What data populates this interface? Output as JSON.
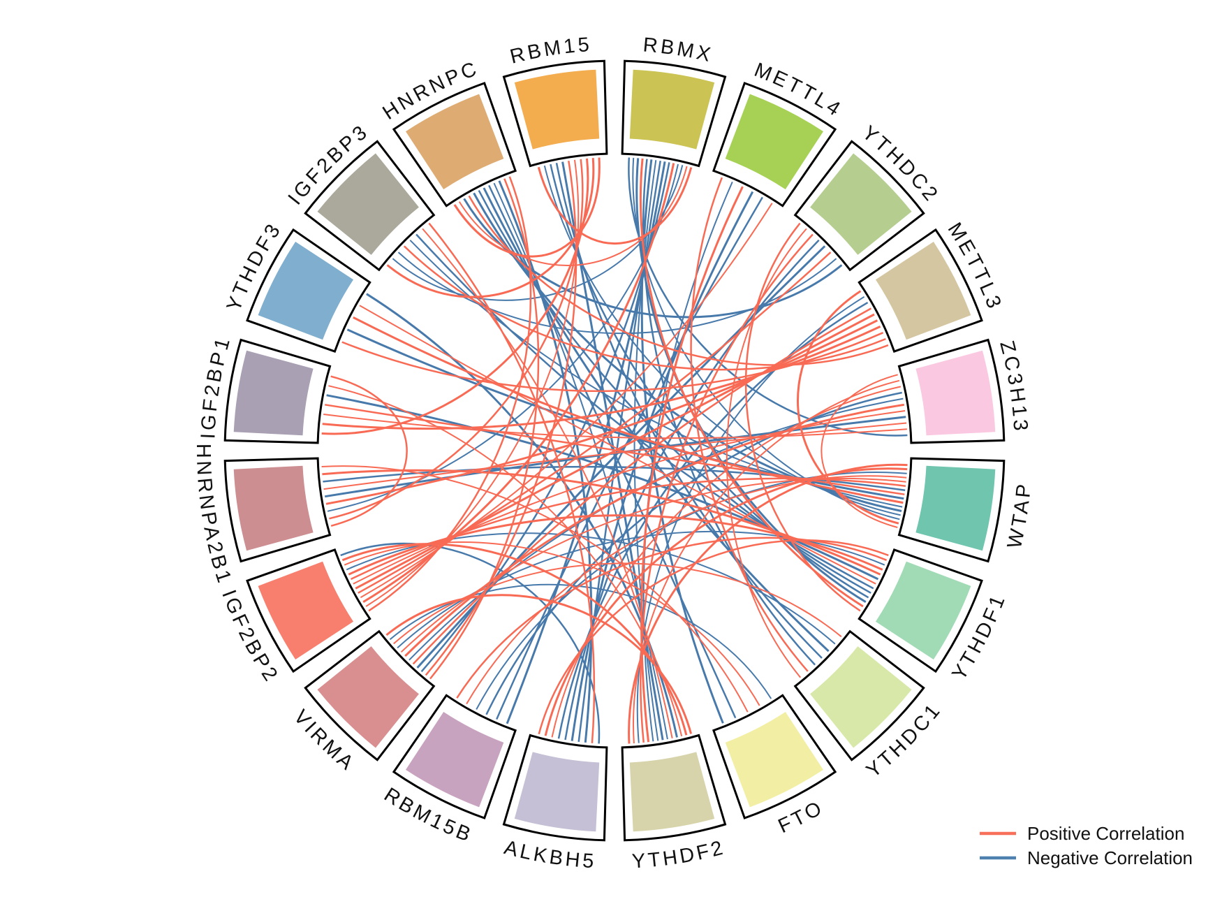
{
  "chart_data": {
    "type": "chord",
    "title": "",
    "description": "Circular chord diagram of correlations between m6A regulator genes",
    "background": "#FFFFFF",
    "colors": {
      "positive": "#F86A54",
      "negative": "#4779AB",
      "sector_border": "#000000",
      "label": "#111111"
    },
    "genes": [
      {
        "name": "RBMX",
        "color": "#CBC353"
      },
      {
        "name": "METTL4",
        "color": "#A6D154"
      },
      {
        "name": "YTHDC2",
        "color": "#B5CE90"
      },
      {
        "name": "METTL3",
        "color": "#D5C6A2"
      },
      {
        "name": "ZC3H13",
        "color": "#FAC9E1"
      },
      {
        "name": "WTAP",
        "color": "#6FC5AE"
      },
      {
        "name": "YTHDF1",
        "color": "#A0DBB5"
      },
      {
        "name": "YTHDC1",
        "color": "#D7E8A8"
      },
      {
        "name": "FTO",
        "color": "#F2EFA4"
      },
      {
        "name": "YTHDF2",
        "color": "#D7D4AB"
      },
      {
        "name": "ALKBH5",
        "color": "#C5C0D5"
      },
      {
        "name": "RBM15B",
        "color": "#C8A3BF"
      },
      {
        "name": "VIRMA",
        "color": "#D98E90"
      },
      {
        "name": "IGF2BP2",
        "color": "#F87F6E"
      },
      {
        "name": "HNRNPA2B1",
        "color": "#CD8E92"
      },
      {
        "name": "IGF2BP1",
        "color": "#A9A0B4"
      },
      {
        "name": "YTHDF3",
        "color": "#7FAECE"
      },
      {
        "name": "IGF2BP3",
        "color": "#ABA99B"
      },
      {
        "name": "HNRNPC",
        "color": "#DEAB73"
      },
      {
        "name": "RBM15",
        "color": "#F3AC4E"
      }
    ],
    "links": {
      "negative": [
        [
          "RBMX",
          "YTHDF2"
        ],
        [
          "RBMX",
          "ALKBH5"
        ],
        [
          "RBMX",
          "YTHDF1"
        ],
        [
          "RBMX",
          "WTAP"
        ],
        [
          "RBMX",
          "VIRMA"
        ],
        [
          "RBMX",
          "RBM15B"
        ],
        [
          "RBMX",
          "HNRNPA2B1"
        ],
        [
          "RBMX",
          "YTHDC1"
        ],
        [
          "RBMX",
          "FTO"
        ],
        [
          "RBMX",
          "IGF2BP3"
        ],
        [
          "RBMX",
          "ZC3H13"
        ],
        [
          "RBM15",
          "YTHDF2"
        ],
        [
          "RBM15",
          "WTAP"
        ],
        [
          "RBM15",
          "YTHDC1"
        ],
        [
          "METTL4",
          "ALKBH5"
        ],
        [
          "METTL4",
          "YTHDF2"
        ],
        [
          "METTL4",
          "RBM15B"
        ],
        [
          "YTHDC2",
          "VIRMA"
        ],
        [
          "YTHDC2",
          "IGF2BP3"
        ],
        [
          "YTHDC2",
          "ALKBH5"
        ],
        [
          "YTHDC2",
          "HNRNPC"
        ],
        [
          "METTL3",
          "YTHDF2"
        ],
        [
          "METTL3",
          "ALKBH5"
        ],
        [
          "ZC3H13",
          "HNRNPA2B1"
        ],
        [
          "ZC3H13",
          "VIRMA"
        ],
        [
          "ZC3H13",
          "RBM15B"
        ],
        [
          "WTAP",
          "HNRNPC"
        ],
        [
          "WTAP",
          "IGF2BP3"
        ],
        [
          "WTAP",
          "HNRNPA2B1"
        ],
        [
          "WTAP",
          "YTHDF3"
        ],
        [
          "WTAP",
          "RBM15B"
        ],
        [
          "YTHDF1",
          "HNRNPC"
        ],
        [
          "YTHDF1",
          "IGF2BP1"
        ],
        [
          "YTHDF1",
          "VIRMA"
        ],
        [
          "YTHDF1",
          "RBM15"
        ],
        [
          "YTHDC1",
          "HNRNPC"
        ],
        [
          "YTHDC1",
          "IGF2BP2"
        ],
        [
          "FTO",
          "HNRNPC"
        ],
        [
          "YTHDF2",
          "YTHDF3"
        ],
        [
          "YTHDF2",
          "HNRNPC"
        ],
        [
          "ALKBH5",
          "IGF2BP2"
        ],
        [
          "ALKBH5",
          "HNRNPC"
        ],
        [
          "VIRMA",
          "FTO"
        ],
        [
          "IGF2BP3",
          "YTHDF1"
        ]
      ],
      "positive": [
        [
          "IGF2BP2",
          "METTL3"
        ],
        [
          "IGF2BP2",
          "ZC3H13"
        ],
        [
          "IGF2BP2",
          "YTHDC2"
        ],
        [
          "IGF2BP2",
          "RBMX"
        ],
        [
          "IGF2BP2",
          "METTL4"
        ],
        [
          "IGF2BP2",
          "WTAP"
        ],
        [
          "IGF2BP2",
          "YTHDF1"
        ],
        [
          "IGF2BP2",
          "RBM15"
        ],
        [
          "IGF2BP2",
          "HNRNPC"
        ],
        [
          "IGF2BP2",
          "YTHDF2"
        ],
        [
          "IGF2BP2",
          "FTO"
        ],
        [
          "VIRMA",
          "METTL3"
        ],
        [
          "VIRMA",
          "ZC3H13"
        ],
        [
          "VIRMA",
          "WTAP"
        ],
        [
          "VIRMA",
          "RBM15"
        ],
        [
          "VIRMA",
          "YTHDF2"
        ],
        [
          "VIRMA",
          "YTHDC1"
        ],
        [
          "VIRMA",
          "HNRNPC"
        ],
        [
          "HNRNPA2B1",
          "METTL3"
        ],
        [
          "HNRNPA2B1",
          "ZC3H13"
        ],
        [
          "HNRNPA2B1",
          "RBM15"
        ],
        [
          "HNRNPA2B1",
          "YTHDF1"
        ],
        [
          "HNRNPA2B1",
          "FTO"
        ],
        [
          "HNRNPA2B1",
          "IGF2BP1"
        ],
        [
          "IGF2BP1",
          "METTL3"
        ],
        [
          "IGF2BP1",
          "ZC3H13"
        ],
        [
          "IGF2BP1",
          "WTAP"
        ],
        [
          "IGF2BP1",
          "RBM15"
        ],
        [
          "IGF2BP1",
          "YTHDF2"
        ],
        [
          "YTHDF3",
          "METTL3"
        ],
        [
          "YTHDF3",
          "WTAP"
        ],
        [
          "YTHDF3",
          "YTHDF1"
        ],
        [
          "IGF2BP3",
          "METTL3"
        ],
        [
          "IGF2BP3",
          "RBM15"
        ],
        [
          "IGF2BP3",
          "YTHDF2"
        ],
        [
          "IGF2BP3",
          "ALKBH5"
        ],
        [
          "HNRNPC",
          "RBM15"
        ],
        [
          "HNRNPC",
          "RBMX"
        ],
        [
          "HNRNPC",
          "METTL3"
        ],
        [
          "RBM15",
          "RBMX"
        ],
        [
          "RBM15B",
          "WTAP"
        ],
        [
          "RBM15B",
          "YTHDF1"
        ],
        [
          "ALKBH5",
          "WTAP"
        ],
        [
          "ALKBH5",
          "ZC3H13"
        ],
        [
          "ALKBH5",
          "YTHDF1"
        ],
        [
          "YTHDF2",
          "WTAP"
        ],
        [
          "YTHDF2",
          "ZC3H13"
        ],
        [
          "YTHDF2",
          "YTHDC2"
        ],
        [
          "YTHDF2",
          "METTL4"
        ],
        [
          "YTHDC1",
          "YTHDC2"
        ],
        [
          "YTHDC1",
          "METTL4"
        ],
        [
          "WTAP",
          "METTL3"
        ],
        [
          "WTAP",
          "ZC3H13"
        ],
        [
          "YTHDF1",
          "YTHDC2"
        ],
        [
          "YTHDF1",
          "RBMX"
        ]
      ]
    },
    "legend": {
      "position": "bottom-right",
      "items": [
        {
          "label": "Positive Correlation",
          "color": "#F8705A"
        },
        {
          "label": "Negative Correlation",
          "color": "#4E81B0"
        }
      ]
    }
  }
}
